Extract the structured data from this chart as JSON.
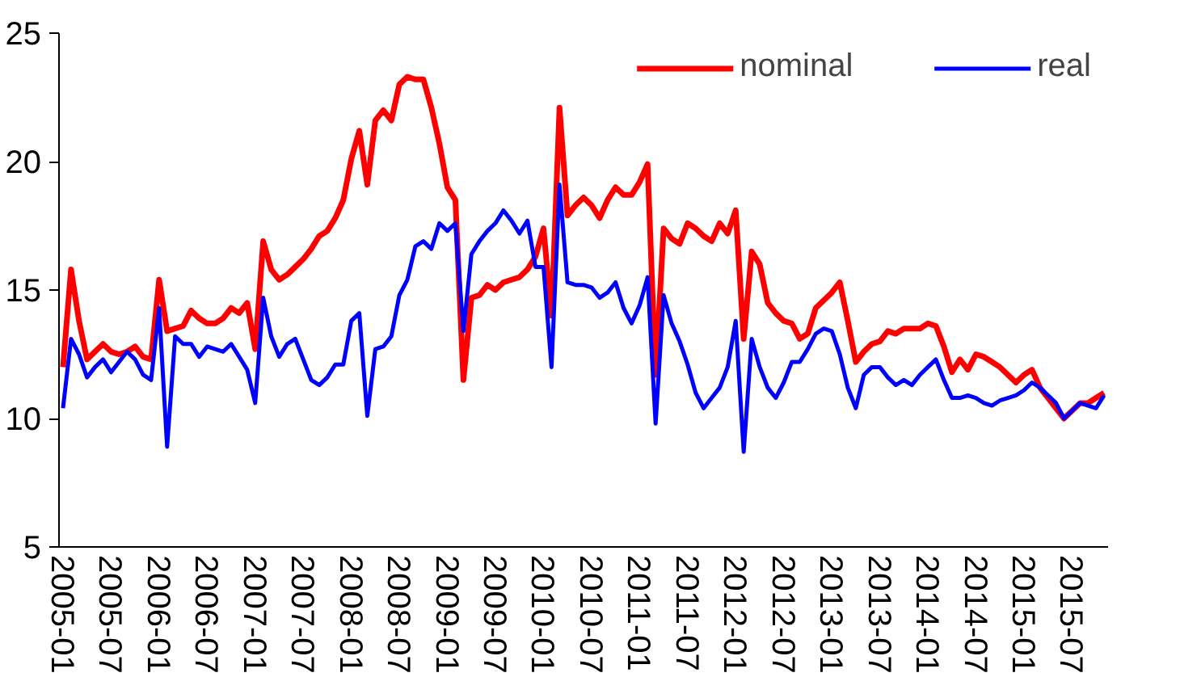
{
  "chart_data": {
    "type": "line",
    "categories": [
      "2005-01",
      null,
      null,
      null,
      null,
      null,
      "2005-07",
      null,
      null,
      null,
      null,
      null,
      "2006-01",
      null,
      null,
      null,
      null,
      null,
      "2006-07",
      null,
      null,
      null,
      null,
      null,
      "2007-01",
      null,
      null,
      null,
      null,
      null,
      "2007-07",
      null,
      null,
      null,
      null,
      null,
      "2008-01",
      null,
      null,
      null,
      null,
      null,
      "2008-07",
      null,
      null,
      null,
      null,
      null,
      "2009-01",
      null,
      null,
      null,
      null,
      null,
      "2009-07",
      null,
      null,
      null,
      null,
      null,
      "2010-01",
      null,
      null,
      null,
      null,
      null,
      "2010-07",
      null,
      null,
      null,
      null,
      null,
      "2011-01",
      null,
      null,
      null,
      null,
      null,
      "2011-07",
      null,
      null,
      null,
      null,
      null,
      "2012-01",
      null,
      null,
      null,
      null,
      null,
      "2012-07",
      null,
      null,
      null,
      null,
      null,
      "2013-01",
      null,
      null,
      null,
      null,
      null,
      "2013-07",
      null,
      null,
      null,
      null,
      null,
      "2014-01",
      null,
      null,
      null,
      null,
      null,
      "2014-07",
      null,
      null,
      null,
      null,
      null,
      "2015-01",
      null,
      null,
      null,
      null,
      null,
      "2015-07",
      null,
      null,
      null,
      null
    ],
    "series": [
      {
        "name": "nominal",
        "color": "#ff0000",
        "values": [
          12.0,
          15.8,
          13.8,
          12.3,
          12.6,
          12.9,
          12.6,
          12.5,
          12.6,
          12.8,
          12.4,
          12.3,
          15.4,
          13.4,
          13.5,
          13.6,
          14.2,
          13.9,
          13.7,
          13.7,
          13.9,
          14.3,
          14.1,
          14.5,
          12.7,
          16.9,
          15.8,
          15.4,
          15.6,
          15.9,
          16.2,
          16.6,
          17.1,
          17.3,
          17.8,
          18.5,
          20.1,
          21.2,
          19.1,
          21.6,
          22.0,
          21.6,
          23.0,
          23.3,
          23.2,
          23.2,
          22.1,
          20.7,
          19.0,
          18.5,
          11.5,
          14.7,
          14.8,
          15.2,
          15.0,
          15.3,
          15.4,
          15.5,
          15.8,
          16.3,
          17.4,
          14.0,
          22.1,
          17.9,
          18.3,
          18.6,
          18.3,
          17.8,
          18.5,
          19.0,
          18.7,
          18.7,
          19.2,
          19.9,
          11.7,
          17.4,
          17.0,
          16.8,
          17.6,
          17.4,
          17.1,
          16.9,
          17.6,
          17.2,
          18.1,
          13.1,
          16.5,
          16.0,
          14.5,
          14.1,
          13.8,
          13.7,
          13.1,
          13.3,
          14.3,
          14.6,
          14.9,
          15.3,
          13.8,
          12.2,
          12.6,
          12.9,
          13.0,
          13.4,
          13.3,
          13.5,
          13.5,
          13.5,
          13.7,
          13.6,
          12.8,
          11.8,
          12.3,
          11.9,
          12.5,
          12.4,
          12.2,
          12.0,
          11.7,
          11.4,
          11.7,
          11.9,
          11.2,
          10.8,
          10.4,
          10.0,
          10.3,
          10.6,
          10.6,
          10.8,
          11.0
        ]
      },
      {
        "name": "real",
        "color": "#0000ff",
        "values": [
          10.4,
          13.1,
          12.5,
          11.6,
          12.0,
          12.3,
          11.8,
          12.2,
          12.6,
          12.3,
          11.7,
          11.5,
          14.3,
          8.9,
          13.2,
          12.9,
          12.9,
          12.4,
          12.8,
          12.7,
          12.6,
          12.9,
          12.4,
          11.9,
          10.6,
          14.7,
          13.2,
          12.4,
          12.9,
          13.1,
          12.3,
          11.5,
          11.3,
          11.6,
          12.1,
          12.1,
          13.8,
          14.1,
          10.1,
          12.7,
          12.8,
          13.2,
          14.8,
          15.4,
          16.7,
          16.9,
          16.6,
          17.6,
          17.3,
          17.6,
          13.4,
          16.4,
          16.9,
          17.3,
          17.6,
          18.1,
          17.7,
          17.2,
          17.7,
          15.9,
          15.9,
          12.0,
          19.1,
          15.3,
          15.2,
          15.2,
          15.1,
          14.7,
          14.9,
          15.3,
          14.3,
          13.7,
          14.4,
          15.5,
          9.8,
          14.8,
          13.7,
          13.0,
          12.1,
          11.0,
          10.4,
          10.8,
          11.2,
          12.0,
          13.8,
          8.7,
          13.1,
          12.0,
          11.2,
          10.8,
          11.4,
          12.2,
          12.2,
          12.7,
          13.3,
          13.5,
          13.4,
          12.5,
          11.2,
          10.4,
          11.7,
          12.0,
          12.0,
          11.6,
          11.3,
          11.5,
          11.3,
          11.7,
          12.0,
          12.3,
          11.5,
          10.8,
          10.8,
          10.9,
          10.8,
          10.6,
          10.5,
          10.7,
          10.8,
          10.9,
          11.1,
          11.4,
          11.2,
          10.9,
          10.6,
          10.0,
          10.3,
          10.6,
          10.5,
          10.4,
          10.9
        ]
      }
    ],
    "ylim": [
      5,
      25
    ],
    "yticks": [
      5,
      10,
      15,
      20,
      25
    ],
    "grid": false,
    "legend": "top right",
    "marker": "none",
    "line_style": "solid"
  }
}
